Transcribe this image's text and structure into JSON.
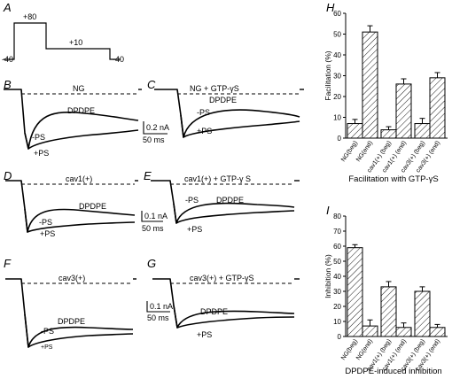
{
  "panels": {
    "A": {
      "label": "A",
      "step_labels": [
        "+80",
        "-40",
        "+10",
        "-40"
      ]
    },
    "B": {
      "label": "B",
      "condition": "NG",
      "traces": [
        "DPDPE",
        "-PS",
        "+PS"
      ]
    },
    "C": {
      "label": "C",
      "condition": "NG + GTP-γS",
      "traces": [
        "DPDPE",
        "-PS",
        "+PS"
      ]
    },
    "D": {
      "label": "D",
      "condition": "cav1(+)",
      "traces": [
        "DPDPE",
        "-PS",
        "+PS"
      ]
    },
    "E": {
      "label": "E",
      "condition": "cav1(+) + GTP-γ S",
      "traces": [
        "DPDPE",
        "-PS",
        "+PS"
      ]
    },
    "F": {
      "label": "F",
      "condition": "cav3(+)",
      "traces": [
        "DPDPE",
        "-PS",
        "+PS"
      ]
    },
    "G": {
      "label": "G",
      "condition": "cav3(+) + GTP-γS",
      "traces": [
        "DPDPE",
        "+PS"
      ]
    },
    "H": {
      "label": "H"
    },
    "I": {
      "label": "I"
    },
    "scale_BC": {
      "current": "0.2 nA",
      "time": "50 ms"
    },
    "scale_DE": {
      "current": "0.1 nA",
      "time": "50 ms"
    },
    "scale_FG": {
      "current": "0.1 nA",
      "time": "50 ms"
    }
  },
  "chart_data": [
    {
      "type": "bar",
      "title": "Facilitation with GTP-γS",
      "ylabel": "Facilitation (%)",
      "xlabel": "",
      "ylim": [
        0,
        60
      ],
      "yticks": [
        0,
        10,
        20,
        30,
        40,
        50,
        60
      ],
      "categories": [
        "NG(beg)",
        "NG(end)",
        "cav1(+) (beg)",
        "cav1(+) (end)",
        "cav3(+) (beg)",
        "cav3(+) (end)"
      ],
      "values": [
        7,
        51,
        4,
        26,
        7,
        29
      ],
      "errors": [
        2,
        3,
        1.5,
        2.5,
        2.5,
        2.5
      ],
      "grid": false
    },
    {
      "type": "bar",
      "title": "DPDPE-induced inhibition",
      "ylabel": "Inhibition (%)",
      "xlabel": "",
      "ylim": [
        0,
        80
      ],
      "yticks": [
        0,
        10,
        20,
        30,
        40,
        50,
        60,
        70,
        80
      ],
      "categories": [
        "NG(beg)",
        "NG(end)",
        "cav1(+) (beg)",
        "cav1(+) (end)",
        "cav3(+) (beg)",
        "cav3(+) (end)"
      ],
      "values": [
        59,
        7,
        33,
        6,
        30,
        6
      ],
      "errors": [
        2,
        4,
        3.5,
        3,
        3,
        2
      ],
      "grid": false
    }
  ]
}
